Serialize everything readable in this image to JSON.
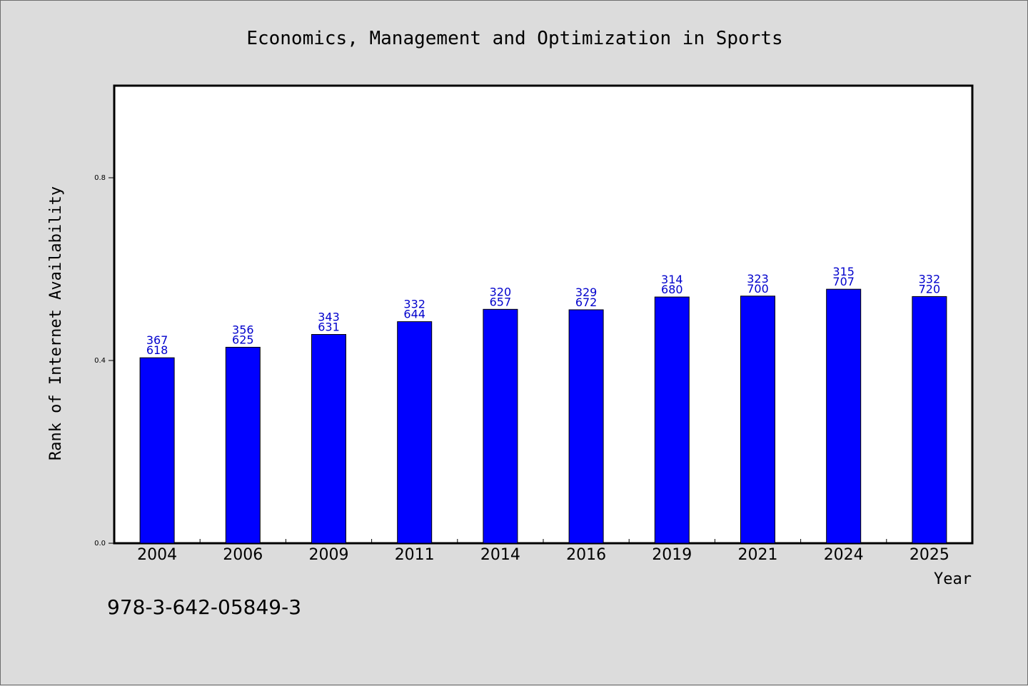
{
  "chart_data": {
    "type": "bar",
    "title": "Economics, Management and Optimization in Sports",
    "xlabel": "Year",
    "ylabel": "Rank of Internet Availability",
    "categories": [
      "2004",
      "2006",
      "2009",
      "2011",
      "2014",
      "2016",
      "2019",
      "2021",
      "2024",
      "2025"
    ],
    "values": [
      0.406,
      0.429,
      0.457,
      0.485,
      0.512,
      0.511,
      0.539,
      0.541,
      0.556,
      0.54
    ],
    "data_labels": [
      [
        "367",
        "618"
      ],
      [
        "356",
        "625"
      ],
      [
        "343",
        "631"
      ],
      [
        "332",
        "644"
      ],
      [
        "320",
        "657"
      ],
      [
        "329",
        "672"
      ],
      [
        "314",
        "680"
      ],
      [
        "323",
        "700"
      ],
      [
        "315",
        "707"
      ],
      [
        "332",
        "720"
      ]
    ],
    "yticks": [
      0.0,
      0.4,
      0.8
    ],
    "ytick_labels": [
      "0.0",
      "0.4",
      "0.8"
    ],
    "ylim": [
      0,
      1.0
    ],
    "grid": false,
    "bar_color": "#0000ff",
    "label_color": "#0000cc"
  },
  "footnote": "978-3-642-05849-3"
}
